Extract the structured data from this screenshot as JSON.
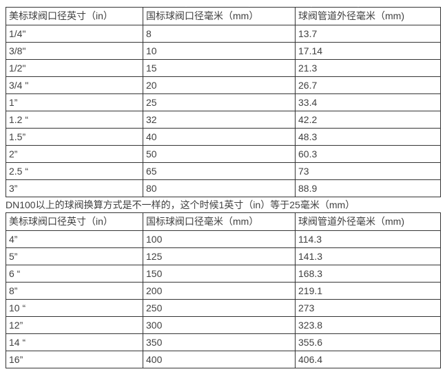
{
  "colors": {
    "text": "#404040",
    "border": "#333333",
    "background": "#ffffff"
  },
  "note": {
    "text": "DN100以上的球阀换算方式是不一样的，这个时候1英寸（in）等于25毫米（mm）"
  },
  "tables": {
    "small_sizes": {
      "headers": [
        "美标球阀口径英寸（in）",
        "国标球阀口径毫米（mm）",
        "球阀管道外径毫米（mm)"
      ],
      "rows": [
        [
          "1/4\"",
          "8",
          "13.7"
        ],
        [
          "3/8\"",
          "10",
          "17.14"
        ],
        [
          "1/2\"",
          "15",
          "21.3"
        ],
        [
          "3/4 \"",
          "20",
          "26.7"
        ],
        [
          "1”",
          "25",
          "33.4"
        ],
        [
          "1.2 “",
          "32",
          "42.2"
        ],
        [
          "1.5”",
          "40",
          "48.3"
        ],
        [
          "2”",
          "50",
          "60.3"
        ],
        [
          "2.5 “",
          "65",
          "73"
        ],
        [
          "3”",
          "80",
          "88.9"
        ]
      ]
    },
    "large_sizes": {
      "headers": [
        "美标球阀口径英寸（in）",
        "国标球阀口径毫米（mm）",
        "球阀管道外径毫米（mm)"
      ],
      "rows": [
        [
          "4”",
          "100",
          "114.3"
        ],
        [
          "5”",
          "125",
          "141.3"
        ],
        [
          "6 “",
          "150",
          "168.3"
        ],
        [
          "8”",
          "200",
          "219.1"
        ],
        [
          "10 “",
          "250",
          "273"
        ],
        [
          "12”",
          "300",
          "323.8"
        ],
        [
          "14 “",
          "350",
          "355.6"
        ],
        [
          "16”",
          "400",
          "406.4"
        ]
      ]
    }
  }
}
